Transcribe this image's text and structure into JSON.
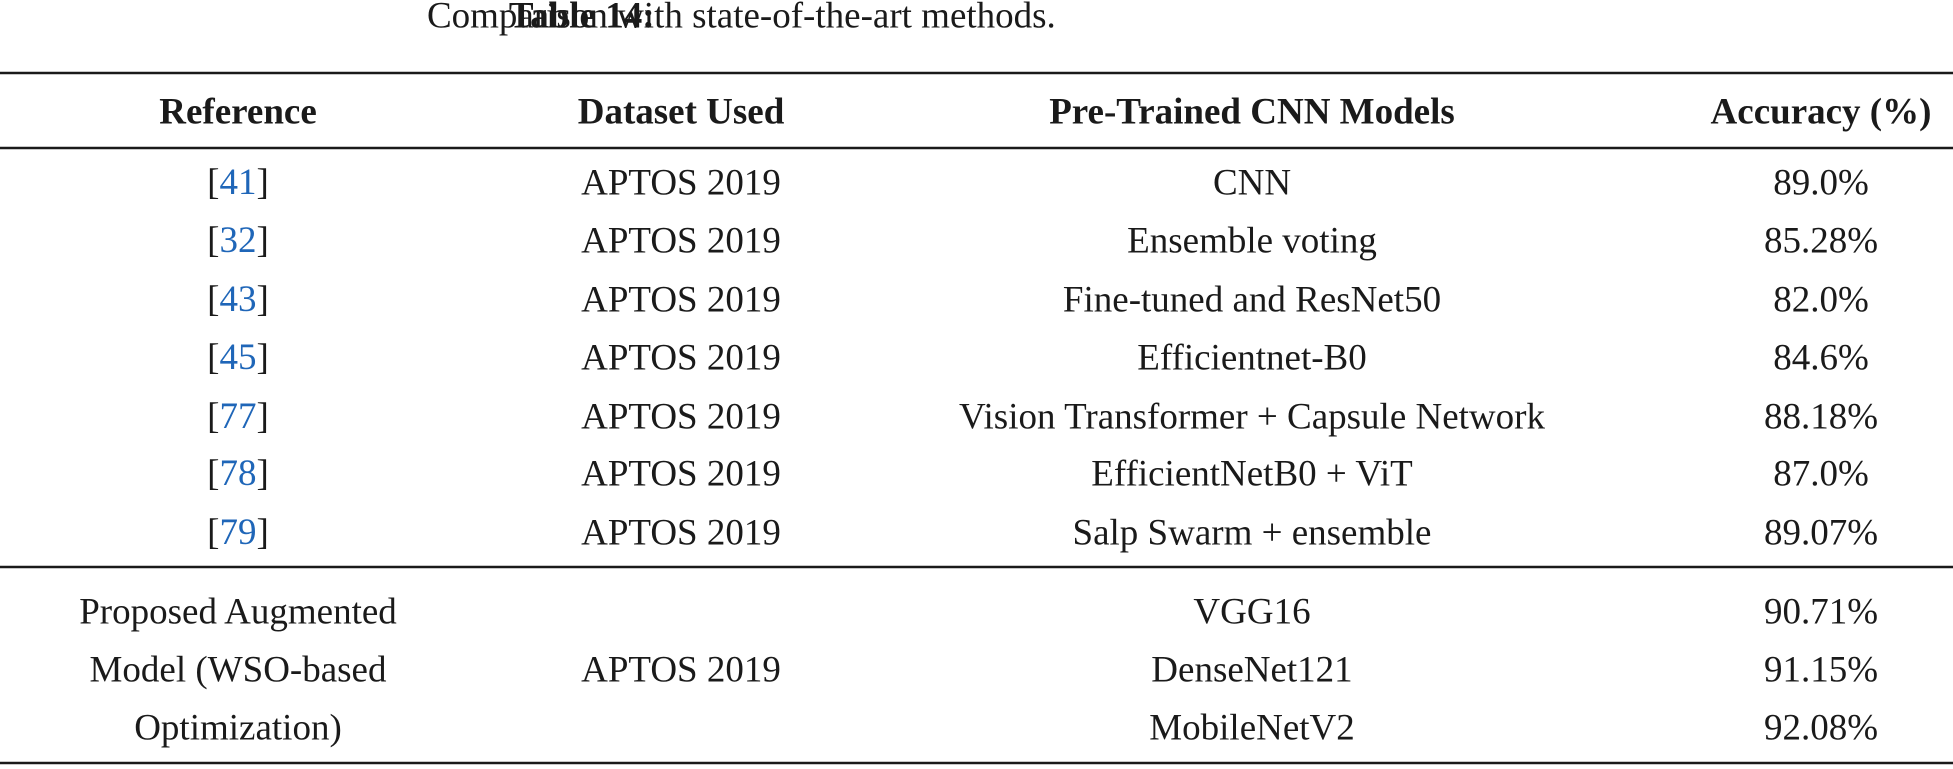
{
  "caption": {
    "label": "Table 14:",
    "text": "Comparison with state-of-the-art methods."
  },
  "table": {
    "header": [
      "Reference",
      "Dataset Used",
      "Pre-Trained CNN Models",
      "Accuracy (%)"
    ],
    "rows": [
      [
        "[41]",
        "APTOS 2019",
        "CNN",
        "89.0%"
      ],
      [
        "[32]",
        "APTOS 2019",
        "Ensemble voting",
        "85.28%"
      ],
      [
        "[43]",
        "APTOS 2019",
        "Fine-tuned and ResNet50",
        "82.0%"
      ],
      [
        "[45]",
        "APTOS 2019",
        "Efficientnet-B0",
        "84.6%"
      ],
      [
        "[77]",
        "APTOS 2019",
        "Vision Transformer + Capsule Network",
        "88.18%"
      ],
      [
        "[78]",
        "APTOS 2019",
        "EfficientNetB0 + ViT",
        "87.0%"
      ],
      [
        "[79]",
        "APTOS 2019",
        "Salp Swarm + ensemble",
        "89.07%"
      ]
    ],
    "proposed": {
      "reference": [
        "Proposed Augmented",
        "Model (WSO-based",
        "Optimization)"
      ],
      "dataset": "APTOS 2019",
      "models": [
        "VGG16",
        "DenseNet121",
        "MobileNetV2"
      ],
      "accuracy": [
        "90.71%",
        "91.15%",
        "92.08%"
      ]
    }
  }
}
